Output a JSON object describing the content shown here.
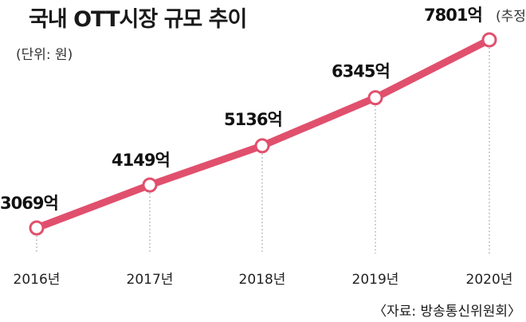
{
  "header": {
    "title": "국내 OTT시장 규모 추이",
    "unit": "(단위: 원)"
  },
  "source": "〈자료: 방송통신위원회〉",
  "colors": {
    "line": "#e0506d",
    "marker_fill": "#ffffff",
    "guide": "#9a9a9a",
    "text": "#111111"
  },
  "chart_data": {
    "type": "line",
    "title": "국내 OTT시장 규모 추이",
    "x_tick_labels": [
      "2016년",
      "2017년",
      "2018년",
      "2019년",
      "2020년"
    ],
    "series": [
      {
        "values": [
          3069,
          4149,
          5136,
          6345,
          7801
        ],
        "data_labels": [
          "3069억",
          "4149억",
          "5136억",
          "6345억",
          "7801억"
        ]
      }
    ],
    "annotations": [
      {
        "category": "2020년",
        "text": "(추정)"
      }
    ],
    "grid": false,
    "legend": "none"
  }
}
